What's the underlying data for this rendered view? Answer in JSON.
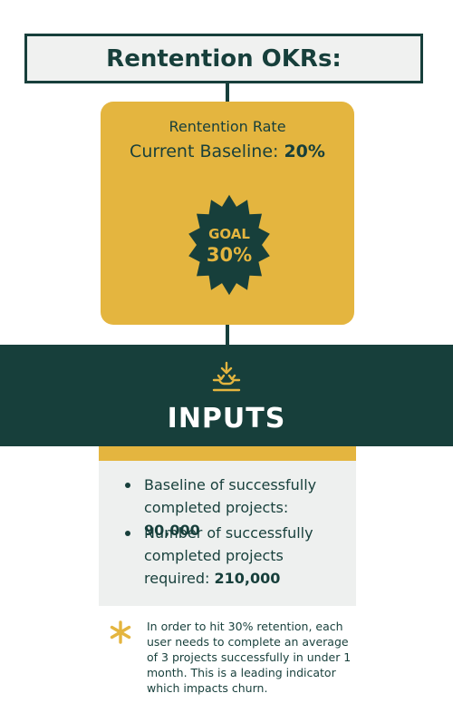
{
  "header": {
    "title": "Rentention OKRs:"
  },
  "goal_card": {
    "rate_label": "Rentention Rate",
    "baseline_label": "Current Baseline:",
    "baseline_value": "20%",
    "badge_label": "GOAL",
    "badge_value": "30%"
  },
  "inputs": {
    "icon": "inputs-tray-icon",
    "title": "INPUTS",
    "items": [
      {
        "text": "Baseline of successfully completed projects:",
        "value": "90,000"
      },
      {
        "text": "Number of successfully completed projects required:",
        "value": "210,000"
      }
    ]
  },
  "note": {
    "icon": "asterisk-icon",
    "text": "In order to hit 30% retention, each user needs to complete an average of 3 projects successfully in under 1 month. This is a leading indicator which impacts churn."
  },
  "colors": {
    "dark_teal": "#173f3b",
    "gold": "#e4b53f",
    "light_gray": "#eef0ef"
  }
}
